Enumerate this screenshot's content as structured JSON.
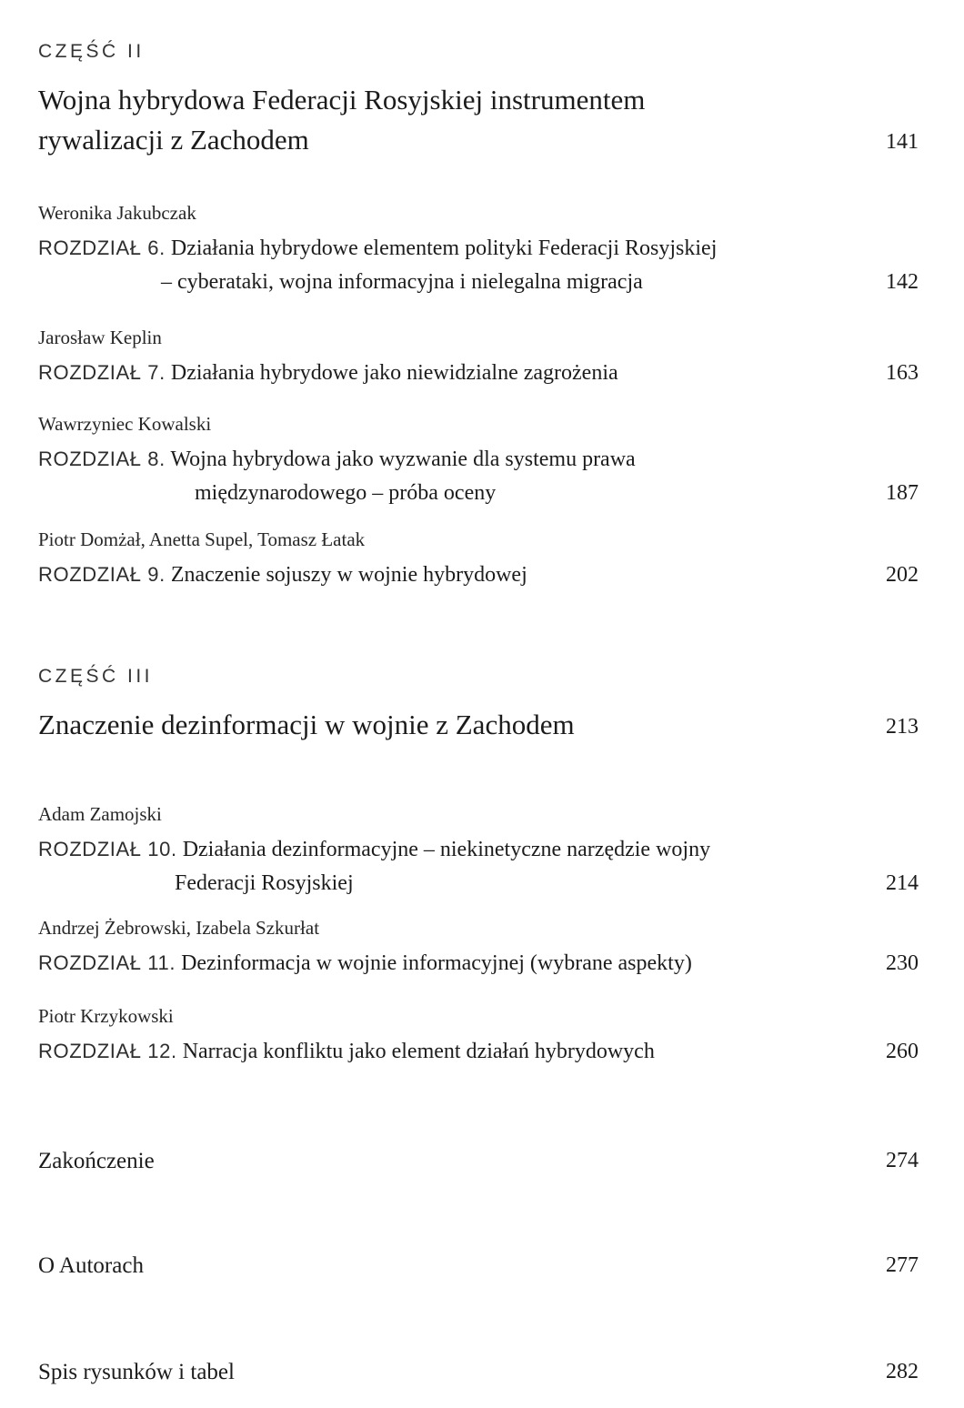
{
  "colors": {
    "background": "#ffffff",
    "text": "#1e1e1e"
  },
  "toc": {
    "parts": [
      {
        "label": "CZĘŚĆ II",
        "title_line1": "Wojna hybrydowa Federacji Rosyjskiej instrumentem",
        "title_line2": "rywalizacji z Zachodem",
        "page": "141"
      },
      {
        "label": "CZĘŚĆ III",
        "title_line1": "Znaczenie dezinformacji w wojnie z Zachodem",
        "page": "213"
      }
    ],
    "chapters": [
      {
        "authors": "Weronika Jakubczak",
        "number": "ROZDZIAŁ 6.",
        "title_line1": "Działania hybrydowe elementem polityki Federacji Rosyjskiej",
        "title_line2": "– cyberataki, wojna informacyjna i nielegalna migracja",
        "page": "142"
      },
      {
        "authors": "Jarosław Keplin",
        "number": "ROZDZIAŁ 7.",
        "title_line1": "Działania hybrydowe jako niewidzialne zagrożenia",
        "page": "163"
      },
      {
        "authors": "Wawrzyniec Kowalski",
        "number": "ROZDZIAŁ 8.",
        "title_line1": "Wojna hybrydowa jako wyzwanie dla systemu prawa",
        "title_line2": "międzynarodowego – próba oceny",
        "page": "187"
      },
      {
        "authors": "Piotr Domżał, Anetta Supel, Tomasz Łatak",
        "number": "ROZDZIAŁ 9.",
        "title_line1": "Znaczenie sojuszy w wojnie hybrydowej",
        "page": "202"
      },
      {
        "authors": "Adam Zamojski",
        "number": "ROZDZIAŁ 10.",
        "title_line1": "Działania dezinformacyjne – niekinetyczne narzędzie wojny",
        "title_line2": "Federacji Rosyjskiej",
        "page": "214"
      },
      {
        "authors": "Andrzej Żebrowski, Izabela Szkurłat",
        "number": "ROZDZIAŁ 11.",
        "title_line1": "Dezinformacja w wojnie informacyjnej (wybrane aspekty)",
        "page": "230"
      },
      {
        "authors": "Piotr Krzykowski",
        "number": "ROZDZIAŁ 12.",
        "title_line1": "Narracja konfliktu jako element działań hybrydowych",
        "page": "260"
      }
    ],
    "backmatter": [
      {
        "title": "Zakończenie",
        "page": "274"
      },
      {
        "title": "O Autorach",
        "page": "277"
      },
      {
        "title": "Spis rysunków i tabel",
        "page": "282"
      }
    ]
  }
}
